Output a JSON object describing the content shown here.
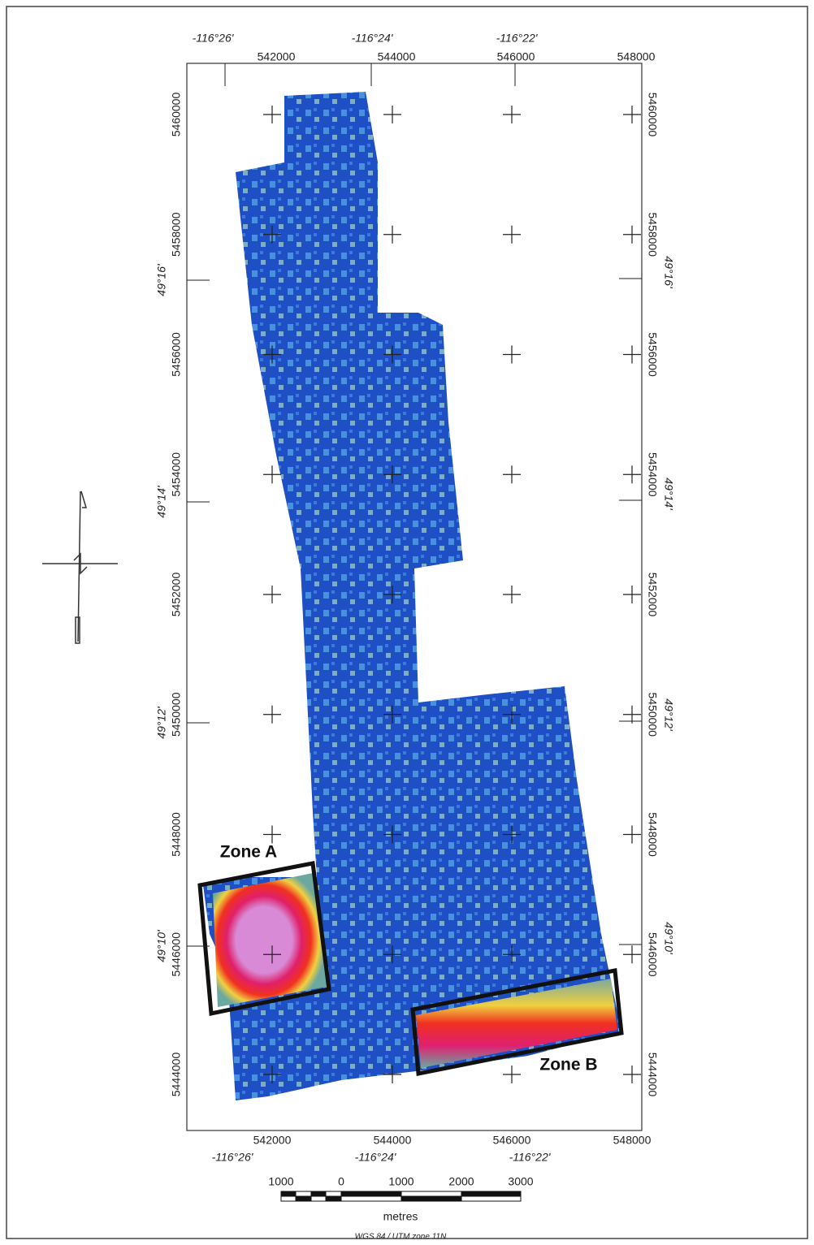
{
  "map": {
    "top_longitudes": [
      "-116°26'",
      "-116°24'",
      "-116°22'"
    ],
    "bottom_longitudes": [
      "-116°26'",
      "-116°24'",
      "-116°22'"
    ],
    "eastings": [
      542000,
      544000,
      546000,
      548000
    ],
    "northings": [
      5460000,
      5458000,
      5456000,
      5454000,
      5452000,
      5450000,
      5448000,
      5446000,
      5444000
    ],
    "latitudes": [
      "49°16'",
      "49°14'",
      "49°12'",
      "49°10'"
    ],
    "zones": [
      "Zone A",
      "Zone B"
    ],
    "scale_bar": {
      "labels": [
        1000,
        0,
        1000,
        2000,
        3000
      ],
      "unit": "metres"
    },
    "projection": "WGS 84 / UTM zone 11N"
  }
}
